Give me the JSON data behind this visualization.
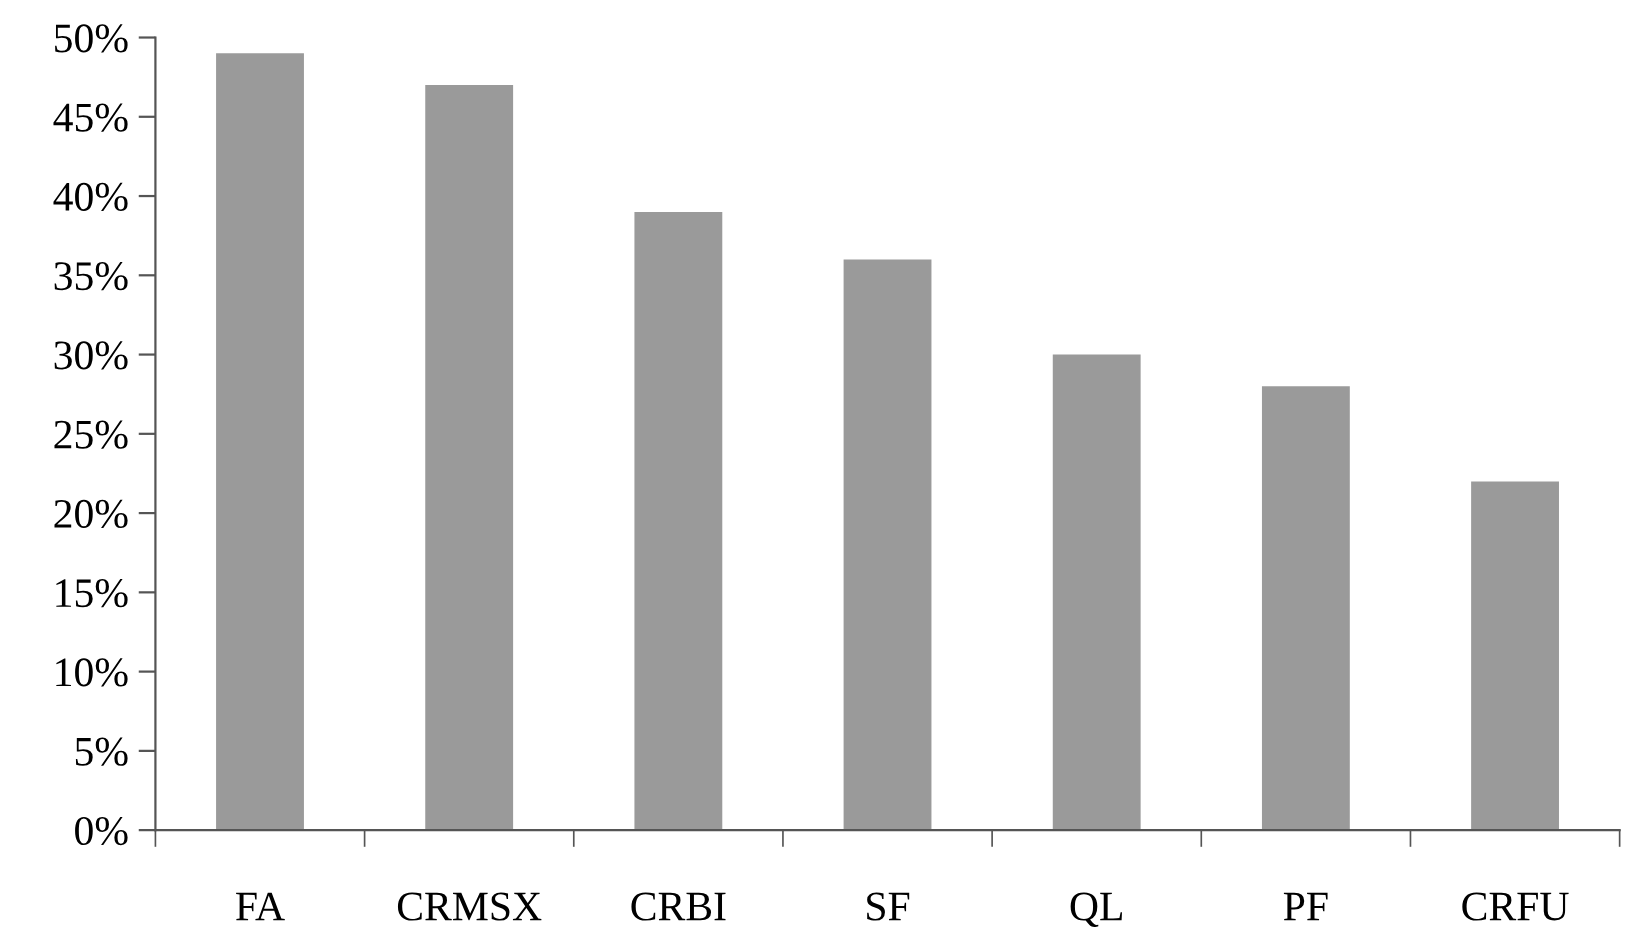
{
  "chart_data": {
    "type": "bar",
    "categories": [
      "FA",
      "CRMSX",
      "CRBI",
      "SF",
      "QL",
      "PF",
      "CRFU"
    ],
    "values": [
      49,
      47,
      39,
      36,
      30,
      28,
      22
    ],
    "color": "#9a9a9a",
    "ylim": [
      0,
      50
    ],
    "yticks": [
      {
        "value": 0,
        "label": "0%"
      },
      {
        "value": 5,
        "label": "5%"
      },
      {
        "value": 10,
        "label": "10%"
      },
      {
        "value": 15,
        "label": "15%"
      },
      {
        "value": 20,
        "label": "20%"
      },
      {
        "value": 25,
        "label": "25%"
      },
      {
        "value": 30,
        "label": "30%"
      },
      {
        "value": 35,
        "label": "35%"
      },
      {
        "value": 40,
        "label": "40%"
      },
      {
        "value": 45,
        "label": "45%"
      },
      {
        "value": 50,
        "label": "50%"
      }
    ],
    "grid": false,
    "legend": false
  }
}
